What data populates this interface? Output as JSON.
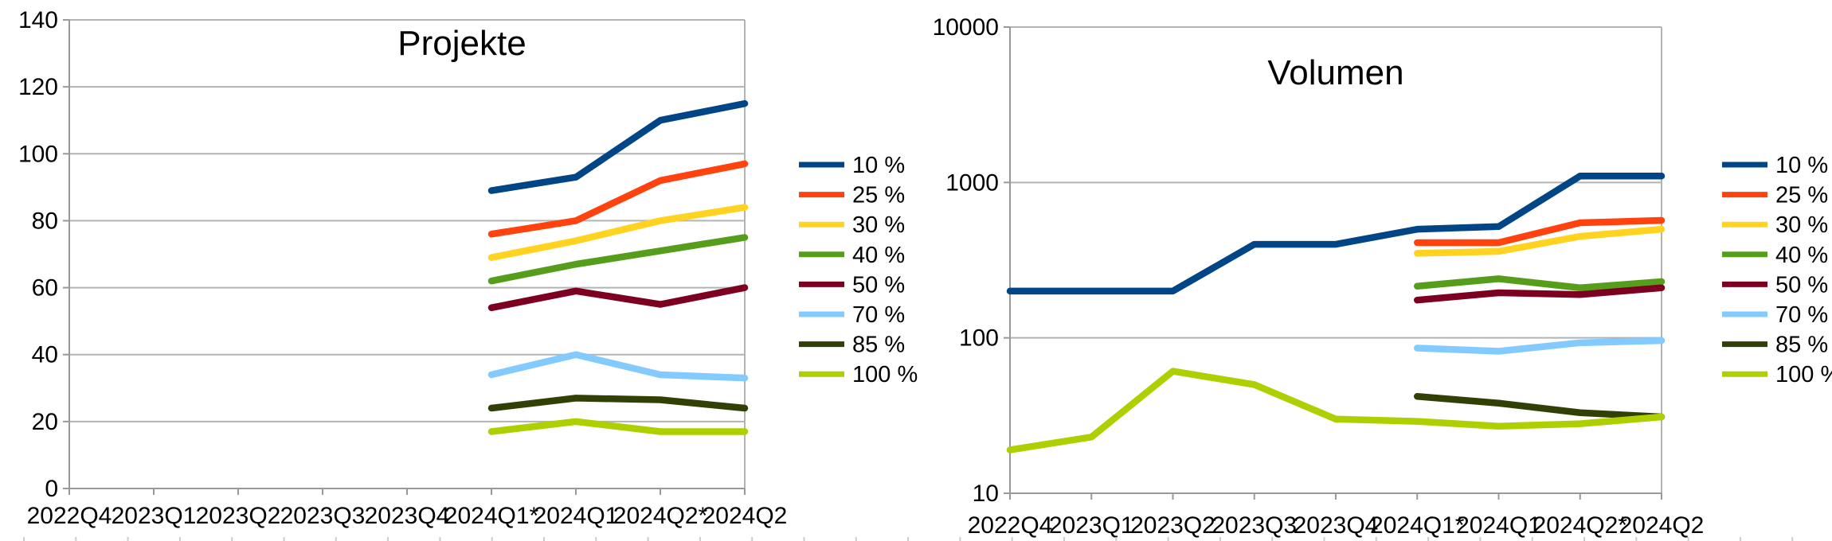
{
  "page": {
    "background": "#ffffff"
  },
  "chart_data": [
    {
      "type": "line",
      "title": "Projekte",
      "xlabel": "",
      "ylabel": "",
      "legend_position": "right",
      "grid": true,
      "y_axis": {
        "scale": "linear",
        "min": 0,
        "max": 140,
        "ticks": [
          0,
          20,
          40,
          60,
          80,
          100,
          120,
          140
        ]
      },
      "categories": [
        "2022Q4",
        "2023Q1",
        "2023Q2",
        "2023Q3",
        "2023Q4",
        "2024Q1*",
        "2024Q1",
        "2024Q2*",
        "2024Q2"
      ],
      "series": [
        {
          "name": "10 %",
          "color": "#004586",
          "values": [
            null,
            null,
            null,
            null,
            null,
            89,
            93,
            110,
            115
          ]
        },
        {
          "name": "25 %",
          "color": "#FF420E",
          "values": [
            null,
            null,
            null,
            null,
            null,
            76,
            80,
            92,
            97
          ]
        },
        {
          "name": "30 %",
          "color": "#FFD320",
          "values": [
            null,
            null,
            null,
            null,
            null,
            69,
            74,
            80,
            84
          ]
        },
        {
          "name": "40 %",
          "color": "#579D1C",
          "values": [
            null,
            null,
            null,
            null,
            null,
            62,
            67,
            71,
            75
          ]
        },
        {
          "name": "50 %",
          "color": "#7E0021",
          "values": [
            null,
            null,
            null,
            null,
            null,
            54,
            59,
            55,
            60
          ]
        },
        {
          "name": "70 %",
          "color": "#83CAFF",
          "values": [
            null,
            null,
            null,
            null,
            null,
            34,
            40,
            34,
            33
          ]
        },
        {
          "name": "85 %",
          "color": "#314004",
          "values": [
            null,
            null,
            null,
            null,
            null,
            24,
            27,
            26.5,
            24
          ]
        },
        {
          "name": "100 %",
          "color": "#AECF00",
          "values": [
            null,
            null,
            null,
            null,
            null,
            17,
            20,
            17,
            17
          ]
        }
      ]
    },
    {
      "type": "line",
      "title": "Volumen",
      "xlabel": "",
      "ylabel": "",
      "legend_position": "right",
      "grid": true,
      "y_axis": {
        "scale": "log",
        "min": 10,
        "max": 10000,
        "ticks": [
          10,
          100,
          1000,
          10000
        ]
      },
      "categories": [
        "2022Q4",
        "2023Q1",
        "2023Q2",
        "2023Q3",
        "2023Q4",
        "2024Q1*",
        "2024Q1",
        "2024Q2*",
        "2024Q2"
      ],
      "series": [
        {
          "name": "10 %",
          "color": "#004586",
          "values": [
            200,
            200,
            200,
            400,
            400,
            500,
            520,
            1100,
            1100
          ]
        },
        {
          "name": "25 %",
          "color": "#FF420E",
          "values": [
            null,
            null,
            null,
            null,
            null,
            410,
            410,
            550,
            570
          ]
        },
        {
          "name": "30 %",
          "color": "#FFD320",
          "values": [
            null,
            null,
            null,
            null,
            null,
            350,
            360,
            450,
            500
          ]
        },
        {
          "name": "40 %",
          "color": "#579D1C",
          "values": [
            null,
            null,
            null,
            null,
            null,
            215,
            240,
            210,
            230
          ]
        },
        {
          "name": "50 %",
          "color": "#7E0021",
          "values": [
            null,
            null,
            null,
            null,
            null,
            175,
            195,
            190,
            210
          ]
        },
        {
          "name": "70 %",
          "color": "#83CAFF",
          "values": [
            null,
            null,
            null,
            null,
            null,
            86,
            82,
            93,
            96
          ]
        },
        {
          "name": "85 %",
          "color": "#314004",
          "values": [
            null,
            null,
            null,
            null,
            null,
            42,
            38,
            33,
            31
          ]
        },
        {
          "name": "100 %",
          "color": "#AECF00",
          "values": [
            19,
            23,
            61,
            50,
            30,
            29,
            27,
            28,
            31
          ]
        }
      ]
    }
  ],
  "colors": {
    "gridline": "#b3b3b3",
    "axis": "#999999",
    "sheet_tick": "#cccccc",
    "text": "#000000"
  }
}
